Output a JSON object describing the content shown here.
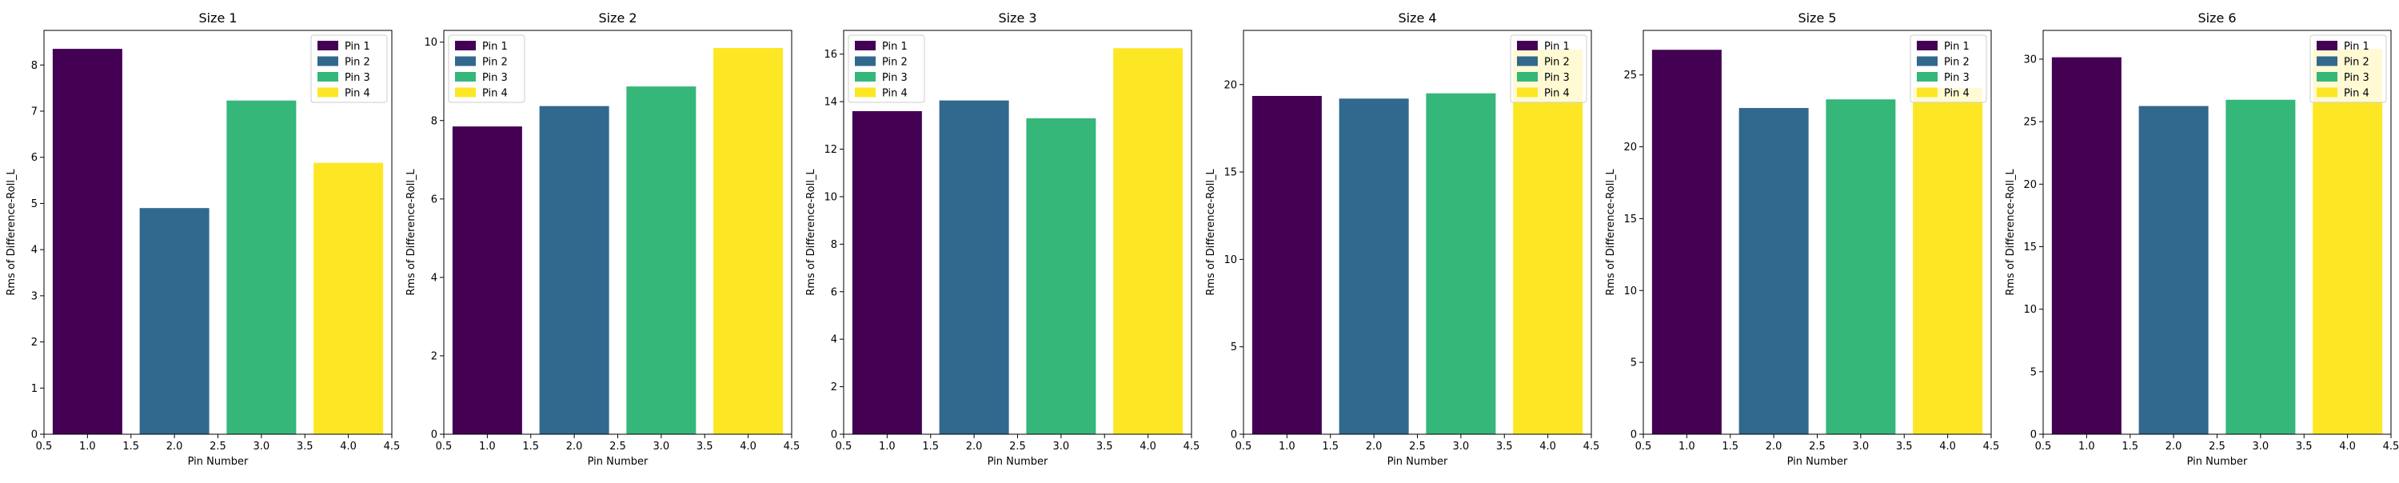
{
  "colors": {
    "pin1": "#440154",
    "pin2": "#31688e",
    "pin3": "#35b779",
    "pin4": "#fde725"
  },
  "chart_data": [
    {
      "type": "bar",
      "title": "Size 1",
      "xlabel": "Pin Number",
      "ylabel": "Rms of Difference-Roll_L",
      "xlim": [
        0.5,
        4.5
      ],
      "xticks": [
        "0.5",
        "1.0",
        "1.5",
        "2.0",
        "2.5",
        "3.0",
        "3.5",
        "4.0",
        "4.5"
      ],
      "ylim": [
        0,
        8.75
      ],
      "yticks": [
        0,
        1,
        2,
        3,
        4,
        5,
        6,
        7,
        8
      ],
      "legend": "top-right",
      "series": [
        {
          "name": "Pin 1",
          "x": 1,
          "value": 8.35
        },
        {
          "name": "Pin 2",
          "x": 2,
          "value": 4.9
        },
        {
          "name": "Pin 3",
          "x": 3,
          "value": 7.23
        },
        {
          "name": "Pin 4",
          "x": 4,
          "value": 5.88
        }
      ]
    },
    {
      "type": "bar",
      "title": "Size 2",
      "xlabel": "Pin Number",
      "ylabel": "Rms of Difference-Roll_L",
      "xlim": [
        0.5,
        4.5
      ],
      "xticks": [
        "0.5",
        "1.0",
        "1.5",
        "2.0",
        "2.5",
        "3.0",
        "3.5",
        "4.0",
        "4.5"
      ],
      "ylim": [
        0,
        10.3
      ],
      "yticks": [
        0,
        2,
        4,
        6,
        8,
        10
      ],
      "legend": "top-left",
      "series": [
        {
          "name": "Pin 1",
          "x": 1,
          "value": 7.85
        },
        {
          "name": "Pin 2",
          "x": 2,
          "value": 8.37
        },
        {
          "name": "Pin 3",
          "x": 3,
          "value": 8.87
        },
        {
          "name": "Pin 4",
          "x": 4,
          "value": 9.85
        }
      ]
    },
    {
      "type": "bar",
      "title": "Size 3",
      "xlabel": "Pin Number",
      "ylabel": "Rms of Difference-Roll_L",
      "xlim": [
        0.5,
        4.5
      ],
      "xticks": [
        "0.5",
        "1.0",
        "1.5",
        "2.0",
        "2.5",
        "3.0",
        "3.5",
        "4.0",
        "4.5"
      ],
      "ylim": [
        0,
        17.0
      ],
      "yticks": [
        0,
        2,
        4,
        6,
        8,
        10,
        12,
        14,
        16
      ],
      "legend": "top-left",
      "series": [
        {
          "name": "Pin 1",
          "x": 1,
          "value": 13.6
        },
        {
          "name": "Pin 2",
          "x": 2,
          "value": 14.05
        },
        {
          "name": "Pin 3",
          "x": 3,
          "value": 13.3
        },
        {
          "name": "Pin 4",
          "x": 4,
          "value": 16.25
        }
      ]
    },
    {
      "type": "bar",
      "title": "Size 4",
      "xlabel": "Pin Number",
      "ylabel": "Rms of Difference-Roll_L",
      "xlim": [
        0.5,
        4.5
      ],
      "xticks": [
        "0.5",
        "1.0",
        "1.5",
        "2.0",
        "2.5",
        "3.0",
        "3.5",
        "4.0",
        "4.5"
      ],
      "ylim": [
        0,
        23.1
      ],
      "yticks": [
        0,
        5,
        10,
        15,
        20
      ],
      "legend": "top-right",
      "series": [
        {
          "name": "Pin 1",
          "x": 1,
          "value": 19.35
        },
        {
          "name": "Pin 2",
          "x": 2,
          "value": 19.2
        },
        {
          "name": "Pin 3",
          "x": 3,
          "value": 19.5
        },
        {
          "name": "Pin 4",
          "x": 4,
          "value": 22.0
        }
      ]
    },
    {
      "type": "bar",
      "title": "Size 5",
      "xlabel": "Pin Number",
      "ylabel": "Rms of Difference-Roll_L",
      "xlim": [
        0.5,
        4.5
      ],
      "xticks": [
        "0.5",
        "1.0",
        "1.5",
        "2.0",
        "2.5",
        "3.0",
        "3.5",
        "4.0",
        "4.5"
      ],
      "ylim": [
        0,
        28.1
      ],
      "yticks": [
        0,
        5,
        10,
        15,
        20,
        25
      ],
      "legend": "top-right",
      "series": [
        {
          "name": "Pin 1",
          "x": 1,
          "value": 26.75
        },
        {
          "name": "Pin 2",
          "x": 2,
          "value": 22.7
        },
        {
          "name": "Pin 3",
          "x": 3,
          "value": 23.3
        },
        {
          "name": "Pin 4",
          "x": 4,
          "value": 24.1
        }
      ]
    },
    {
      "type": "bar",
      "title": "Size 6",
      "xlabel": "Pin Number",
      "ylabel": "Rms of Difference-Roll_L",
      "xlim": [
        0.5,
        4.5
      ],
      "xticks": [
        "0.5",
        "1.0",
        "1.5",
        "2.0",
        "2.5",
        "3.0",
        "3.5",
        "4.0",
        "4.5"
      ],
      "ylim": [
        0,
        32.3
      ],
      "yticks": [
        0,
        5,
        10,
        15,
        20,
        25,
        30
      ],
      "legend": "top-right",
      "series": [
        {
          "name": "Pin 1",
          "x": 1,
          "value": 30.15
        },
        {
          "name": "Pin 2",
          "x": 2,
          "value": 26.25
        },
        {
          "name": "Pin 3",
          "x": 3,
          "value": 26.75
        },
        {
          "name": "Pin 4",
          "x": 4,
          "value": 30.8
        }
      ]
    }
  ]
}
